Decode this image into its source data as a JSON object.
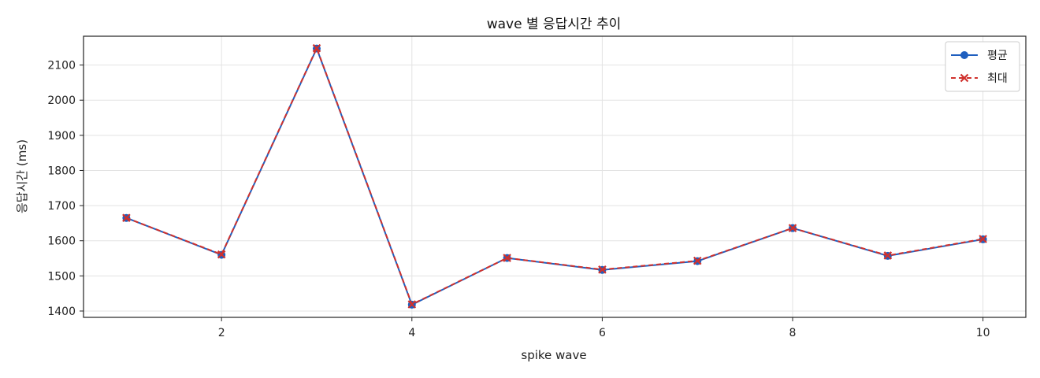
{
  "chart_data": {
    "type": "line",
    "title": "wave 별 응답시간 추이",
    "xlabel": "spike wave",
    "ylabel": "응답시간 (ms)",
    "x": [
      1,
      2,
      3,
      4,
      5,
      6,
      7,
      8,
      9,
      10
    ],
    "xlim": [
      0.55,
      10.45
    ],
    "ylim": [
      1382,
      2182
    ],
    "xticks": [
      2,
      4,
      6,
      8,
      10
    ],
    "yticks": [
      1400,
      1500,
      1600,
      1700,
      1800,
      1900,
      2000,
      2100
    ],
    "grid": true,
    "legend_position": "top-right",
    "series": [
      {
        "name": "평균",
        "values": [
          1665,
          1560,
          2147,
          1418,
          1551,
          1517,
          1542,
          1636,
          1557,
          1604
        ],
        "color": "#1f5fbf",
        "marker": "circle",
        "linestyle": "solid"
      },
      {
        "name": "최대",
        "values": [
          1665,
          1561,
          2148,
          1419,
          1551,
          1518,
          1543,
          1636,
          1558,
          1605
        ],
        "color": "#d0312d",
        "marker": "x",
        "linestyle": "dashed"
      }
    ]
  }
}
